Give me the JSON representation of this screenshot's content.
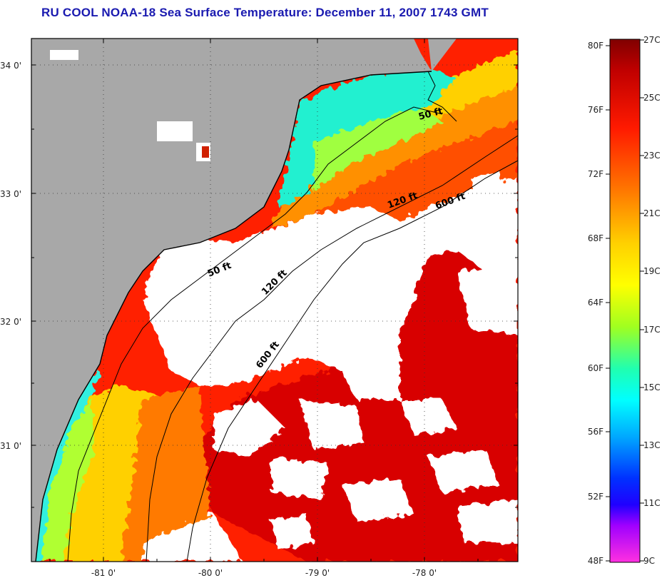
{
  "title": "RU COOL  NOAA-18  Sea Surface Temperature:  December 11, 2007 1743 GMT",
  "map": {
    "lat_labels": [
      "34 0'",
      "33 0'",
      "32 0'",
      "31 0'"
    ],
    "lon_labels": [
      "-81 0'",
      "-80 0'",
      "-79 0'",
      "-78 0'"
    ],
    "contour_labels": [
      "50 ft",
      "120 ft",
      "600 ft",
      "50 ft",
      "120 ft",
      "600 ft"
    ],
    "colors": {
      "land": "#a8a8a8",
      "cloud": "#ffffff",
      "coast": "#000000"
    }
  },
  "colorbar": {
    "fahrenheit": [
      "80F",
      "76F",
      "72F",
      "68F",
      "64F",
      "60F",
      "56F",
      "52F",
      "48F"
    ],
    "celsius": [
      "27C",
      "25C",
      "23C",
      "21C",
      "19C",
      "17C",
      "15C",
      "13C",
      "11C",
      "9C"
    ]
  }
}
